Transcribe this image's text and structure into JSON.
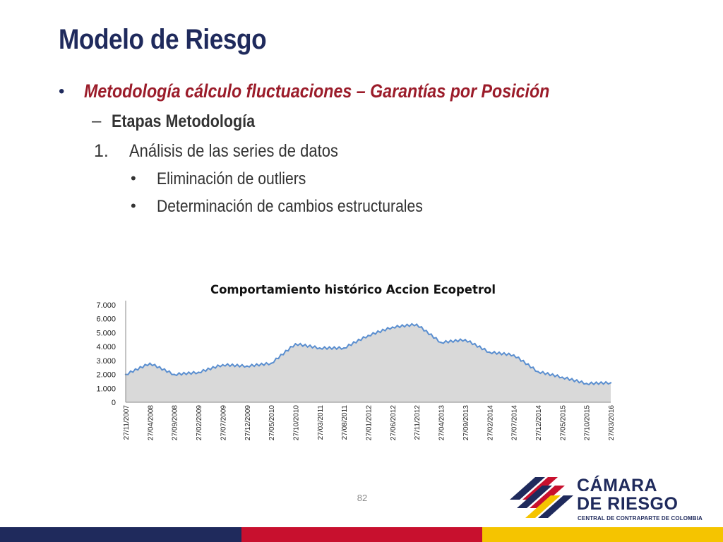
{
  "slide": {
    "title": "Modelo de Riesgo",
    "page_number": "82"
  },
  "bullets": {
    "level1": {
      "marker": "•",
      "text": "Metodología cálculo fluctuaciones – Garantías por Posición"
    },
    "level2": {
      "marker": "–",
      "text": "Etapas Metodología"
    },
    "level3": {
      "marker": "1.",
      "text": "Análisis de las series de datos"
    },
    "level4": [
      {
        "marker": "•",
        "text": "Eliminación de outliers"
      },
      {
        "marker": "•",
        "text": "Determinación de cambios estructurales"
      }
    ]
  },
  "logo": {
    "line1": "CÁMARA",
    "line2": "DE RIESGO",
    "line3": "CENTRAL DE CONTRAPARTE DE COLOMBIA"
  },
  "colors": {
    "title": "#1f2a5c",
    "accent": "#9b1c2a",
    "chart_line": "#5b8fd0",
    "chart_fill": "#d9d9d9",
    "footer_navy": "#1f2a5c",
    "footer_red": "#c8102e",
    "footer_yellow": "#f5c400"
  },
  "chart_data": {
    "type": "area",
    "title": "Comportamiento histórico Accion Ecopetrol",
    "xlabel": "",
    "ylabel": "",
    "ylim": [
      0,
      7000
    ],
    "yticks": [
      "0",
      "1.000",
      "2.000",
      "3.000",
      "4.000",
      "5.000",
      "6.000",
      "7.000"
    ],
    "categories": [
      "27/11/2007",
      "27/04/2008",
      "27/09/2008",
      "27/02/2009",
      "27/07/2009",
      "27/12/2009",
      "27/05/2010",
      "27/10/2010",
      "27/03/2011",
      "27/08/2011",
      "27/01/2012",
      "27/06/2012",
      "27/11/2012",
      "27/04/2013",
      "27/09/2013",
      "27/02/2014",
      "27/07/2014",
      "27/12/2014",
      "27/05/2015",
      "27/10/2015",
      "27/03/2016"
    ],
    "values": [
      2000,
      2800,
      2000,
      2150,
      2700,
      2600,
      2800,
      4200,
      3900,
      3900,
      4800,
      5400,
      5600,
      4300,
      4500,
      3600,
      3400,
      2200,
      1800,
      1350,
      1400
    ],
    "series": [
      {
        "values": [
          2000,
          2800,
          2000,
          2150,
          2700,
          2600,
          2800,
          4200,
          3900,
          3900,
          4800,
          5400,
          5600,
          4300,
          4500,
          3600,
          3400,
          2200,
          1800,
          1350,
          1400
        ]
      }
    ],
    "grid": false,
    "legend": "none"
  }
}
